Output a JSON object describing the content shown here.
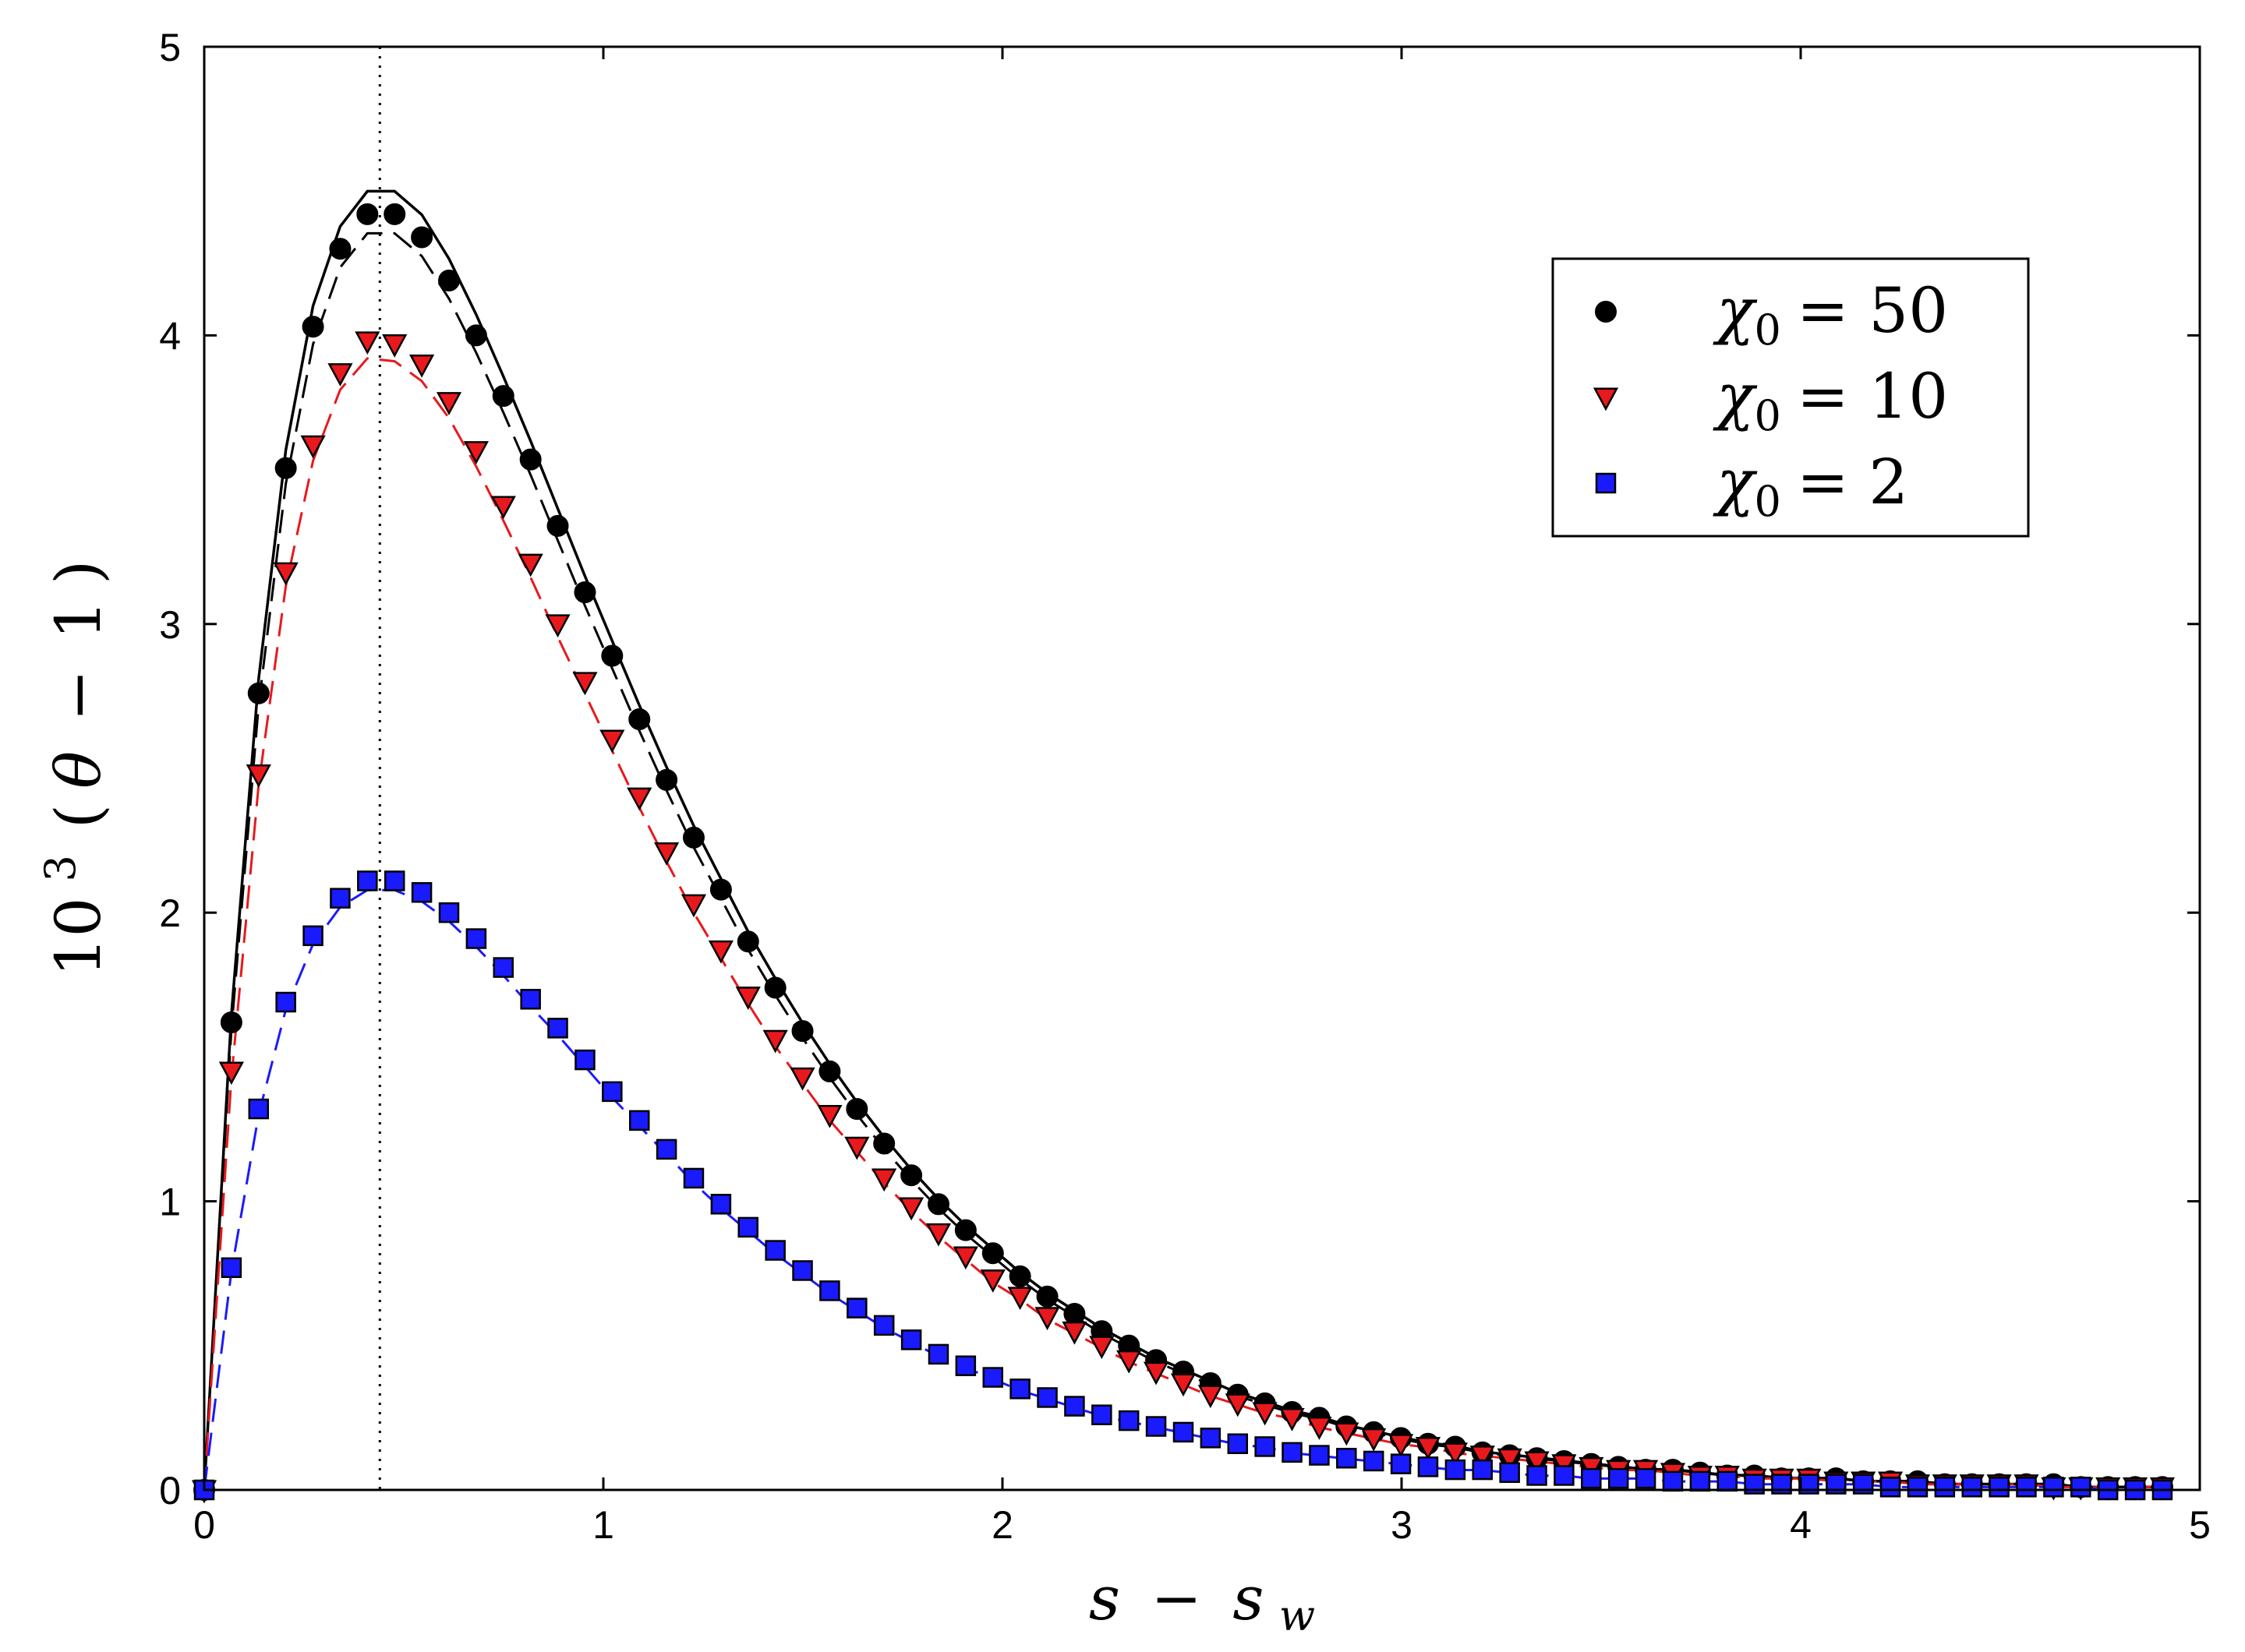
{
  "chart_data": {
    "type": "scatter",
    "title": "",
    "xlabel": {
      "var": "s",
      "minus": "−",
      "var2": "s",
      "sub": "w"
    },
    "ylabel": {
      "base": "10",
      "exp": "3",
      "open": "(",
      "var": "θ",
      "minus": "−",
      "one": "1",
      "close": ")"
    },
    "xlim": [
      0,
      5
    ],
    "ylim": [
      0,
      5
    ],
    "xticks": [
      "0",
      "1",
      "2",
      "3",
      "4",
      "5"
    ],
    "yticks": [
      "0",
      "1",
      "2",
      "3",
      "4",
      "5"
    ],
    "grid": false,
    "legend_position": "top-right",
    "vline_x": 0.44,
    "x": [
      0.0,
      0.0681,
      0.1363,
      0.2044,
      0.2726,
      0.3407,
      0.4088,
      0.477,
      0.5451,
      0.6133,
      0.6814,
      0.7495,
      0.8177,
      0.8858,
      0.954,
      1.0221,
      1.0903,
      1.1584,
      1.2265,
      1.2947,
      1.3628,
      1.431,
      1.4991,
      1.5672,
      1.6354,
      1.7035,
      1.7717,
      1.8398,
      1.9079,
      1.9761,
      2.0442,
      2.1124,
      2.1805,
      2.2487,
      2.3168,
      2.3849,
      2.4531,
      2.5212,
      2.5894,
      2.6575,
      2.7256,
      2.7938,
      2.8619,
      2.9301,
      2.9982,
      3.0663,
      3.1345,
      3.2026,
      3.2708,
      3.3389,
      3.407,
      3.4752,
      3.5433,
      3.6115,
      3.6796,
      3.7478,
      3.8159,
      3.884,
      3.9522,
      4.0203,
      4.0885,
      4.1566,
      4.2247,
      4.2929,
      4.361,
      4.4292,
      4.4973,
      4.5654,
      4.6336,
      4.7017,
      4.7699,
      4.838,
      4.9061
    ],
    "series": [
      {
        "name": "χ0 = 50",
        "legend_var": "χ",
        "legend_sub": "0",
        "legend_rel": "= 50",
        "marker": "circle",
        "color": "#000000",
        "edge": "#000000",
        "line_color": "#000000",
        "values": [
          0.0,
          1.62,
          2.76,
          3.54,
          4.03,
          4.3,
          4.42,
          4.42,
          4.34,
          4.19,
          4.0,
          3.79,
          3.57,
          3.34,
          3.11,
          2.89,
          2.67,
          2.46,
          2.26,
          2.08,
          1.9,
          1.74,
          1.59,
          1.45,
          1.32,
          1.2,
          1.09,
          0.99,
          0.9,
          0.82,
          0.74,
          0.67,
          0.61,
          0.55,
          0.5,
          0.45,
          0.41,
          0.37,
          0.33,
          0.3,
          0.27,
          0.25,
          0.22,
          0.2,
          0.18,
          0.16,
          0.15,
          0.13,
          0.12,
          0.11,
          0.1,
          0.09,
          0.08,
          0.07,
          0.07,
          0.06,
          0.05,
          0.05,
          0.04,
          0.04,
          0.04,
          0.03,
          0.03,
          0.03,
          0.02,
          0.02,
          0.02,
          0.02,
          0.02,
          0.01,
          0.01,
          0.01,
          0.01
        ]
      },
      {
        "name": "χ0 = 10",
        "legend_var": "χ",
        "legend_sub": "0",
        "legend_rel": "= 10",
        "marker": "triangle-down",
        "color": "#e8191d",
        "edge": "#000000",
        "line_color": "#e8191d",
        "values": [
          0.0,
          1.45,
          2.48,
          3.18,
          3.62,
          3.87,
          3.98,
          3.97,
          3.9,
          3.77,
          3.6,
          3.41,
          3.21,
          3.0,
          2.8,
          2.6,
          2.4,
          2.21,
          2.03,
          1.87,
          1.71,
          1.56,
          1.43,
          1.3,
          1.19,
          1.08,
          0.98,
          0.89,
          0.81,
          0.73,
          0.67,
          0.6,
          0.55,
          0.5,
          0.45,
          0.41,
          0.37,
          0.33,
          0.3,
          0.27,
          0.25,
          0.22,
          0.2,
          0.18,
          0.16,
          0.15,
          0.13,
          0.12,
          0.11,
          0.1,
          0.09,
          0.08,
          0.07,
          0.07,
          0.06,
          0.05,
          0.05,
          0.04,
          0.04,
          0.04,
          0.03,
          0.03,
          0.03,
          0.02,
          0.02,
          0.02,
          0.02,
          0.02,
          0.01,
          0.01,
          0.01,
          0.01,
          0.01
        ]
      },
      {
        "name": "χ0 = 2",
        "legend_var": "χ",
        "legend_sub": "0",
        "legend_rel": "= 2",
        "marker": "square",
        "color": "#1a1aff",
        "edge": "#000000",
        "line_color": "#1a1aff",
        "values": [
          0.0,
          0.77,
          1.32,
          1.69,
          1.92,
          2.05,
          2.11,
          2.11,
          2.07,
          2.0,
          1.91,
          1.81,
          1.7,
          1.6,
          1.49,
          1.38,
          1.28,
          1.18,
          1.08,
          0.99,
          0.91,
          0.83,
          0.76,
          0.69,
          0.63,
          0.57,
          0.52,
          0.47,
          0.43,
          0.39,
          0.35,
          0.32,
          0.29,
          0.26,
          0.24,
          0.22,
          0.2,
          0.18,
          0.16,
          0.15,
          0.13,
          0.12,
          0.11,
          0.1,
          0.09,
          0.08,
          0.07,
          0.07,
          0.06,
          0.05,
          0.05,
          0.04,
          0.04,
          0.04,
          0.03,
          0.03,
          0.03,
          0.02,
          0.02,
          0.02,
          0.02,
          0.02,
          0.01,
          0.01,
          0.01,
          0.01,
          0.01,
          0.01,
          0.01,
          0.01,
          0.0,
          0.0,
          0.0
        ]
      }
    ]
  }
}
